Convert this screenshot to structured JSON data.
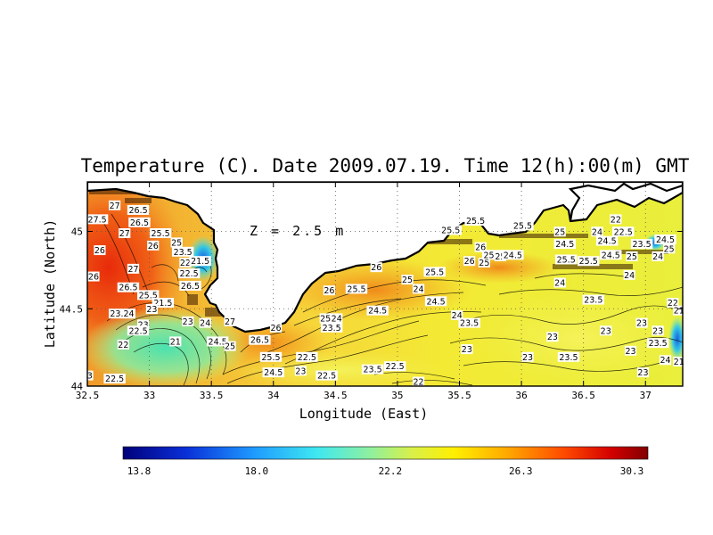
{
  "chart_data": {
    "type": "heatmap",
    "title": "Temperature (C). Date 2009.07.19. Time 12(h):00(m) GMT",
    "xlabel": "Longitude (East)",
    "ylabel": "Latitude (North)",
    "depth_label": "Z = 2.5 m",
    "xlim": [
      32.5,
      37.3
    ],
    "ylim": [
      44.0,
      45.32
    ],
    "x_ticks": [
      "32.5",
      "33",
      "33.5",
      "34",
      "34.5",
      "35",
      "35.5",
      "36",
      "36.5",
      "37"
    ],
    "x_tick_values": [
      32.5,
      33,
      33.5,
      34,
      34.5,
      35,
      35.5,
      36,
      36.5,
      37
    ],
    "y_ticks": [
      "44",
      "44.5",
      "45"
    ],
    "y_tick_values": [
      44.0,
      44.5,
      45.0
    ],
    "grid": true,
    "colorbar": {
      "min": 13.8,
      "max": 30.3,
      "ticks": [
        "13.8",
        "18.0",
        "22.2",
        "26.3",
        "30.3"
      ],
      "tick_values": [
        13.8,
        18.0,
        22.2,
        26.3,
        30.3
      ]
    },
    "contour_labels": [
      {
        "text": "27",
        "lon": 32.72,
        "lat": 45.16
      },
      {
        "text": "26.5",
        "lon": 32.91,
        "lat": 45.13
      },
      {
        "text": "27.5",
        "lon": 32.58,
        "lat": 45.07
      },
      {
        "text": "26.5",
        "lon": 32.92,
        "lat": 45.05
      },
      {
        "text": "27",
        "lon": 32.8,
        "lat": 44.98
      },
      {
        "text": "26",
        "lon": 32.6,
        "lat": 44.87
      },
      {
        "text": "27",
        "lon": 32.87,
        "lat": 44.75
      },
      {
        "text": "26",
        "lon": 32.55,
        "lat": 44.7
      },
      {
        "text": "26.5",
        "lon": 32.83,
        "lat": 44.63
      },
      {
        "text": "25.5",
        "lon": 32.99,
        "lat": 44.58
      },
      {
        "text": "25.5",
        "lon": 33.09,
        "lat": 44.98
      },
      {
        "text": "26",
        "lon": 33.03,
        "lat": 44.9
      },
      {
        "text": "25",
        "lon": 33.22,
        "lat": 44.92
      },
      {
        "text": "23.5",
        "lon": 33.27,
        "lat": 44.86
      },
      {
        "text": "22",
        "lon": 33.29,
        "lat": 44.79
      },
      {
        "text": "21.5",
        "lon": 33.41,
        "lat": 44.8
      },
      {
        "text": "22.5",
        "lon": 33.32,
        "lat": 44.72
      },
      {
        "text": "26.5",
        "lon": 33.33,
        "lat": 44.64
      },
      {
        "text": "21.5",
        "lon": 33.11,
        "lat": 44.53
      },
      {
        "text": "23",
        "lon": 33.02,
        "lat": 44.49
      },
      {
        "text": "23.24",
        "lon": 32.78,
        "lat": 44.46
      },
      {
        "text": "23",
        "lon": 32.95,
        "lat": 44.39
      },
      {
        "text": "22.5",
        "lon": 32.91,
        "lat": 44.35
      },
      {
        "text": "23",
        "lon": 33.31,
        "lat": 44.41
      },
      {
        "text": "24",
        "lon": 33.45,
        "lat": 44.4
      },
      {
        "text": "27",
        "lon": 33.65,
        "lat": 44.41
      },
      {
        "text": "21",
        "lon": 33.21,
        "lat": 44.28
      },
      {
        "text": "22",
        "lon": 32.79,
        "lat": 44.26
      },
      {
        "text": "24.5",
        "lon": 33.55,
        "lat": 44.28
      },
      {
        "text": "25",
        "lon": 33.65,
        "lat": 44.25
      },
      {
        "text": "26.5",
        "lon": 33.89,
        "lat": 44.29
      },
      {
        "text": "26",
        "lon": 34.02,
        "lat": 44.37
      },
      {
        "text": "25.5",
        "lon": 33.98,
        "lat": 44.18
      },
      {
        "text": "24.5",
        "lon": 34.0,
        "lat": 44.08
      },
      {
        "text": "22.5",
        "lon": 34.27,
        "lat": 44.18
      },
      {
        "text": "23",
        "lon": 34.22,
        "lat": 44.09
      },
      {
        "text": "22.5",
        "lon": 34.43,
        "lat": 44.06
      },
      {
        "text": "23.5",
        "lon": 34.8,
        "lat": 44.1
      },
      {
        "text": "22.5",
        "lon": 34.98,
        "lat": 44.12
      },
      {
        "text": "22",
        "lon": 35.17,
        "lat": 44.02
      },
      {
        "text": "22.5",
        "lon": 32.72,
        "lat": 44.04
      },
      {
        "text": "3",
        "lon": 32.52,
        "lat": 44.06
      },
      {
        "text": "25",
        "lon": 34.42,
        "lat": 44.43
      },
      {
        "text": "24",
        "lon": 34.51,
        "lat": 44.43
      },
      {
        "text": "23.5",
        "lon": 34.47,
        "lat": 44.37
      },
      {
        "text": "24.5",
        "lon": 34.84,
        "lat": 44.48
      },
      {
        "text": "26",
        "lon": 34.45,
        "lat": 44.61
      },
      {
        "text": "25.5",
        "lon": 34.67,
        "lat": 44.62
      },
      {
        "text": "26",
        "lon": 34.83,
        "lat": 44.76
      },
      {
        "text": "25",
        "lon": 35.08,
        "lat": 44.68
      },
      {
        "text": "24",
        "lon": 35.17,
        "lat": 44.62
      },
      {
        "text": "25.5",
        "lon": 35.3,
        "lat": 44.73
      },
      {
        "text": "24.5",
        "lon": 35.31,
        "lat": 44.54
      },
      {
        "text": "24",
        "lon": 35.48,
        "lat": 44.45
      },
      {
        "text": "23.5",
        "lon": 35.58,
        "lat": 44.4
      },
      {
        "text": "23",
        "lon": 35.56,
        "lat": 44.23
      },
      {
        "text": "25.5",
        "lon": 35.43,
        "lat": 45.0
      },
      {
        "text": "25.5",
        "lon": 35.63,
        "lat": 45.06
      },
      {
        "text": "26",
        "lon": 35.67,
        "lat": 44.89
      },
      {
        "text": "26",
        "lon": 35.58,
        "lat": 44.8
      },
      {
        "text": "25",
        "lon": 35.7,
        "lat": 44.79
      },
      {
        "text": "25.5",
        "lon": 35.77,
        "lat": 44.84
      },
      {
        "text": "25",
        "lon": 35.83,
        "lat": 44.83
      },
      {
        "text": "24.5",
        "lon": 35.93,
        "lat": 44.84
      },
      {
        "text": "25.5",
        "lon": 36.01,
        "lat": 45.03
      },
      {
        "text": "25",
        "lon": 36.31,
        "lat": 44.99
      },
      {
        "text": "24.5",
        "lon": 36.35,
        "lat": 44.91
      },
      {
        "text": "24",
        "lon": 36.31,
        "lat": 44.66
      },
      {
        "text": "25.5",
        "lon": 36.36,
        "lat": 44.81
      },
      {
        "text": "25.5",
        "lon": 36.54,
        "lat": 44.8
      },
      {
        "text": "24",
        "lon": 36.61,
        "lat": 44.99
      },
      {
        "text": "22",
        "lon": 36.76,
        "lat": 45.07
      },
      {
        "text": "22.5",
        "lon": 36.82,
        "lat": 44.99
      },
      {
        "text": "24.5",
        "lon": 36.69,
        "lat": 44.93
      },
      {
        "text": "24.5",
        "lon": 36.72,
        "lat": 44.84
      },
      {
        "text": "25",
        "lon": 36.89,
        "lat": 44.83
      },
      {
        "text": "23.5",
        "lon": 36.97,
        "lat": 44.91
      },
      {
        "text": "24",
        "lon": 37.1,
        "lat": 44.83
      },
      {
        "text": "24.5",
        "lon": 37.16,
        "lat": 44.94
      },
      {
        "text": "25",
        "lon": 37.19,
        "lat": 44.88
      },
      {
        "text": "24",
        "lon": 36.87,
        "lat": 44.71
      },
      {
        "text": "23.5",
        "lon": 36.58,
        "lat": 44.55
      },
      {
        "text": "22",
        "lon": 37.22,
        "lat": 44.53
      },
      {
        "text": "21",
        "lon": 37.27,
        "lat": 44.48
      },
      {
        "text": "23",
        "lon": 36.97,
        "lat": 44.4
      },
      {
        "text": "23",
        "lon": 36.68,
        "lat": 44.35
      },
      {
        "text": "23",
        "lon": 37.1,
        "lat": 44.35
      },
      {
        "text": "23",
        "lon": 36.25,
        "lat": 44.31
      },
      {
        "text": "23.5",
        "lon": 36.38,
        "lat": 44.18
      },
      {
        "text": "23",
        "lon": 36.05,
        "lat": 44.18
      },
      {
        "text": "23.5",
        "lon": 37.1,
        "lat": 44.27
      },
      {
        "text": "24",
        "lon": 37.16,
        "lat": 44.16
      },
      {
        "text": "21",
        "lon": 37.27,
        "lat": 44.15
      },
      {
        "text": "23",
        "lon": 36.98,
        "lat": 44.08
      },
      {
        "text": "23",
        "lon": 36.88,
        "lat": 44.22
      }
    ]
  }
}
